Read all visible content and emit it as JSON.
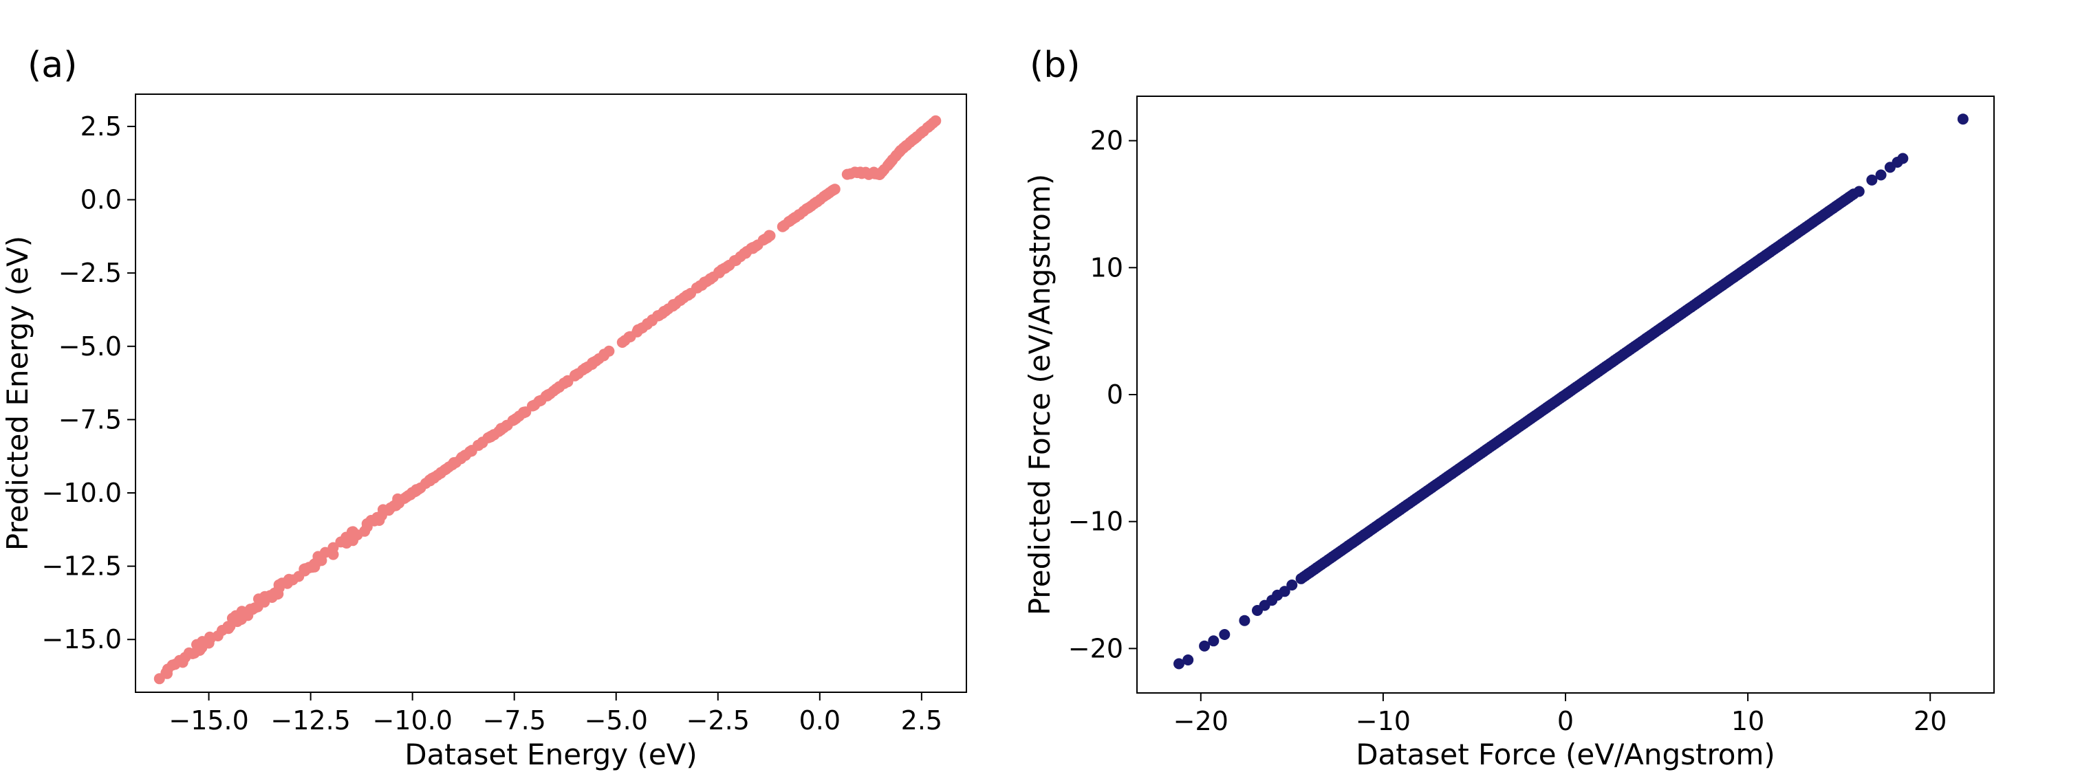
{
  "figure": {
    "background": "#ffffff"
  },
  "chart_data": [
    {
      "type": "scatter",
      "panel_label": "(a)",
      "xlabel": "Dataset Energy (eV)",
      "ylabel": "Predicted Energy (eV)",
      "xlim": [
        -16.8,
        3.6
      ],
      "ylim": [
        -16.8,
        3.6
      ],
      "xticks": [
        -15.0,
        -12.5,
        -10.0,
        -7.5,
        -5.0,
        -2.5,
        0.0,
        2.5
      ],
      "xtick_labels": [
        "−15.0",
        "−12.5",
        "−10.0",
        "−7.5",
        "−5.0",
        "−2.5",
        "0.0",
        "2.5"
      ],
      "yticks": [
        -15.0,
        -12.5,
        -10.0,
        -7.5,
        -5.0,
        -2.5,
        0.0,
        2.5
      ],
      "ytick_labels": [
        "−15.0",
        "−12.5",
        "−10.0",
        "−7.5",
        "−5.0",
        "−2.5",
        "0.0",
        "2.5"
      ],
      "grid": false,
      "series": [
        {
          "name": "energy",
          "color": "#f08080",
          "segments": [
            {
              "x": [
                -16.0,
                -10.5
              ],
              "y": [
                -16.0,
                -10.5
              ],
              "spread": 0.6
            },
            {
              "x": [
                -10.5,
                -5.2
              ],
              "y": [
                -10.5,
                -5.2
              ],
              "spread": 0.1
            },
            {
              "x": [
                -4.8,
                -1.2
              ],
              "y": [
                -4.8,
                -1.2
              ],
              "spread": 0.1
            },
            {
              "x": [
                -0.9,
                0.4
              ],
              "y": [
                -0.9,
                0.4
              ],
              "spread": 0.05
            },
            {
              "x": [
                0.7,
                1.5
              ],
              "y": [
                0.9,
                0.9
              ],
              "spread": 0.05
            },
            {
              "x": [
                1.5,
                2.0
              ],
              "y": [
                0.9,
                1.7
              ],
              "spread": 0.05
            },
            {
              "x": [
                2.0,
                2.85
              ],
              "y": [
                1.7,
                2.7
              ],
              "spread": 0.05
            }
          ]
        }
      ]
    },
    {
      "type": "scatter",
      "panel_label": "(b)",
      "xlabel": "Dataset Force (eV/Angstrom)",
      "ylabel": "Predicted Force (eV/Angstrom)",
      "xlim": [
        -23.5,
        23.5
      ],
      "ylim": [
        -23.5,
        23.5
      ],
      "xticks": [
        -20,
        -10,
        0,
        10,
        20
      ],
      "xtick_labels": [
        "−20",
        "−10",
        "0",
        "10",
        "20"
      ],
      "yticks": [
        -20,
        -10,
        0,
        10,
        20
      ],
      "ytick_labels": [
        "−20",
        "−10",
        "0",
        "10",
        "20"
      ],
      "grid": false,
      "series": [
        {
          "name": "force",
          "color": "#191970",
          "line": {
            "x": [
              -14.5,
              15.8
            ],
            "y": [
              -14.5,
              15.8
            ]
          },
          "points": [
            [
              -21.2,
              -21.2
            ],
            [
              -20.7,
              -20.9
            ],
            [
              -19.8,
              -19.8
            ],
            [
              -19.3,
              -19.4
            ],
            [
              -18.7,
              -18.9
            ],
            [
              -17.6,
              -17.8
            ],
            [
              -16.9,
              -17.0
            ],
            [
              -16.5,
              -16.6
            ],
            [
              -16.1,
              -16.2
            ],
            [
              -15.8,
              -15.8
            ],
            [
              -15.4,
              -15.5
            ],
            [
              -15.0,
              -15.0
            ],
            [
              16.1,
              16.0
            ],
            [
              16.8,
              16.9
            ],
            [
              17.3,
              17.3
            ],
            [
              17.8,
              17.9
            ],
            [
              18.2,
              18.3
            ],
            [
              18.5,
              18.6
            ],
            [
              21.8,
              21.7
            ]
          ]
        }
      ]
    }
  ]
}
